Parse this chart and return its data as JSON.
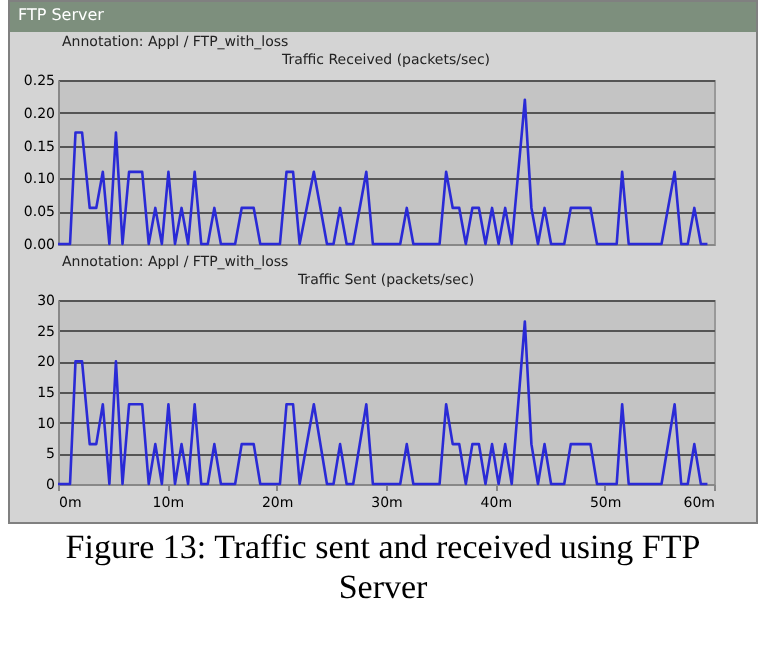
{
  "chart_data": [
    {
      "type": "line",
      "title": "Traffic Received (packets/sec)",
      "annotations": [
        "FTP Server",
        "Annotation: Appl / FTP_with_loss"
      ],
      "x": [
        0,
        1.1,
        1.6,
        2.2,
        2.9,
        3.5,
        4.1,
        4.7,
        5.3,
        5.9,
        6.5,
        7.7,
        8.3,
        8.9,
        9.5,
        10.1,
        10.7,
        11.3,
        11.9,
        12.5,
        13.1,
        13.7,
        14.3,
        14.9,
        16.2,
        16.8,
        17.9,
        18.5,
        20.3,
        20.9,
        21.5,
        22.1,
        23.4,
        24.6,
        25.2,
        25.8,
        26.4,
        27.0,
        28.2,
        28.8,
        31.3,
        31.9,
        32.5,
        34.9,
        35.5,
        36.1,
        36.7,
        37.3,
        37.9,
        38.5,
        39.1,
        39.7,
        40.3,
        40.9,
        41.5,
        42.7,
        43.3,
        43.9,
        44.5,
        45.1,
        46.3,
        46.9,
        48.7,
        49.3,
        51.1,
        51.6,
        52.2,
        55.2,
        56.4,
        57.0,
        57.6,
        58.2,
        58.8,
        59.4
      ],
      "series": [
        {
          "color": "#2a2ad6",
          "values": [
            0,
            0,
            0.17,
            0.17,
            0.055,
            0.055,
            0.11,
            0,
            0.17,
            0,
            0.11,
            0.11,
            0,
            0.055,
            0,
            0.11,
            0,
            0.055,
            0,
            0.11,
            0,
            0,
            0.055,
            0,
            0,
            0.055,
            0.055,
            0,
            0,
            0.11,
            0.11,
            0,
            0.11,
            0,
            0,
            0.055,
            0,
            0,
            0.11,
            0,
            0,
            0.055,
            0,
            0,
            0.11,
            0.055,
            0.055,
            0,
            0.055,
            0.055,
            0,
            0.055,
            0,
            0.055,
            0,
            0.22,
            0.055,
            0,
            0.055,
            0,
            0,
            0.055,
            0.055,
            0,
            0,
            0.11,
            0,
            0,
            0.11,
            0,
            0,
            0.055,
            0,
            0
          ]
        }
      ],
      "xlim": [
        0,
        60
      ],
      "ylim": [
        0,
        0.25
      ],
      "yticks": [
        {
          "value": 0,
          "label": "0.00"
        },
        {
          "value": 0.05,
          "label": "0.05"
        },
        {
          "value": 0.1,
          "label": "0.10"
        },
        {
          "value": 0.15,
          "label": "0.15"
        },
        {
          "value": 0.2,
          "label": "0.20"
        },
        {
          "value": 0.25,
          "label": "0.25"
        }
      ],
      "grid": "y",
      "tick_labels": "y",
      "marker": "none"
    },
    {
      "type": "line",
      "title": "Traffic Sent (packets/sec)",
      "annotations": [
        "Annotation: Appl / FTP_with_loss",
        "Figure 13: Traffic sent and received using FTP Server"
      ],
      "x": [
        0,
        1.1,
        1.6,
        2.2,
        2.9,
        3.5,
        4.1,
        4.7,
        5.3,
        5.9,
        6.5,
        7.7,
        8.3,
        8.9,
        9.5,
        10.1,
        10.7,
        11.3,
        11.9,
        12.5,
        13.1,
        13.7,
        14.3,
        14.9,
        16.2,
        16.8,
        17.9,
        18.5,
        20.3,
        20.9,
        21.5,
        22.1,
        23.4,
        24.6,
        25.2,
        25.8,
        26.4,
        27.0,
        28.2,
        28.8,
        31.3,
        31.9,
        32.5,
        34.9,
        35.5,
        36.1,
        36.7,
        37.3,
        37.9,
        38.5,
        39.1,
        39.7,
        40.3,
        40.9,
        41.5,
        42.7,
        43.3,
        43.9,
        44.5,
        45.1,
        46.3,
        46.9,
        48.7,
        49.3,
        51.1,
        51.6,
        52.2,
        55.2,
        56.4,
        57.0,
        57.6,
        58.2,
        58.8,
        59.4
      ],
      "series": [
        {
          "color": "#2a2ad6",
          "values": [
            0,
            0,
            20,
            20,
            6.5,
            6.5,
            13,
            0,
            20,
            0,
            13,
            13,
            0,
            6.5,
            0,
            13,
            0,
            6.5,
            0,
            13,
            0,
            0,
            6.5,
            0,
            0,
            6.5,
            6.5,
            0,
            0,
            13,
            13,
            0,
            13,
            0,
            0,
            6.5,
            0,
            0,
            13,
            0,
            0,
            6.5,
            0,
            0,
            13,
            6.5,
            6.5,
            0,
            6.5,
            6.5,
            0,
            6.5,
            0,
            6.5,
            0,
            26.5,
            6.5,
            0,
            6.5,
            0,
            0,
            6.5,
            6.5,
            0,
            0,
            13,
            0,
            0,
            13,
            0,
            0,
            6.5,
            0,
            0
          ]
        }
      ],
      "xlim": [
        0,
        60
      ],
      "xticks": [
        {
          "value": 0,
          "label": "0m"
        },
        {
          "value": 10,
          "label": "10m"
        },
        {
          "value": 20,
          "label": "20m"
        },
        {
          "value": 30,
          "label": "30m"
        },
        {
          "value": 40,
          "label": "40m"
        },
        {
          "value": 50,
          "label": "50m"
        },
        {
          "value": 60,
          "label": "60m"
        }
      ],
      "ylim": [
        0,
        30
      ],
      "yticks": [
        0,
        5,
        10,
        15,
        20,
        25,
        30
      ],
      "grid": "y",
      "marker": "none"
    }
  ]
}
